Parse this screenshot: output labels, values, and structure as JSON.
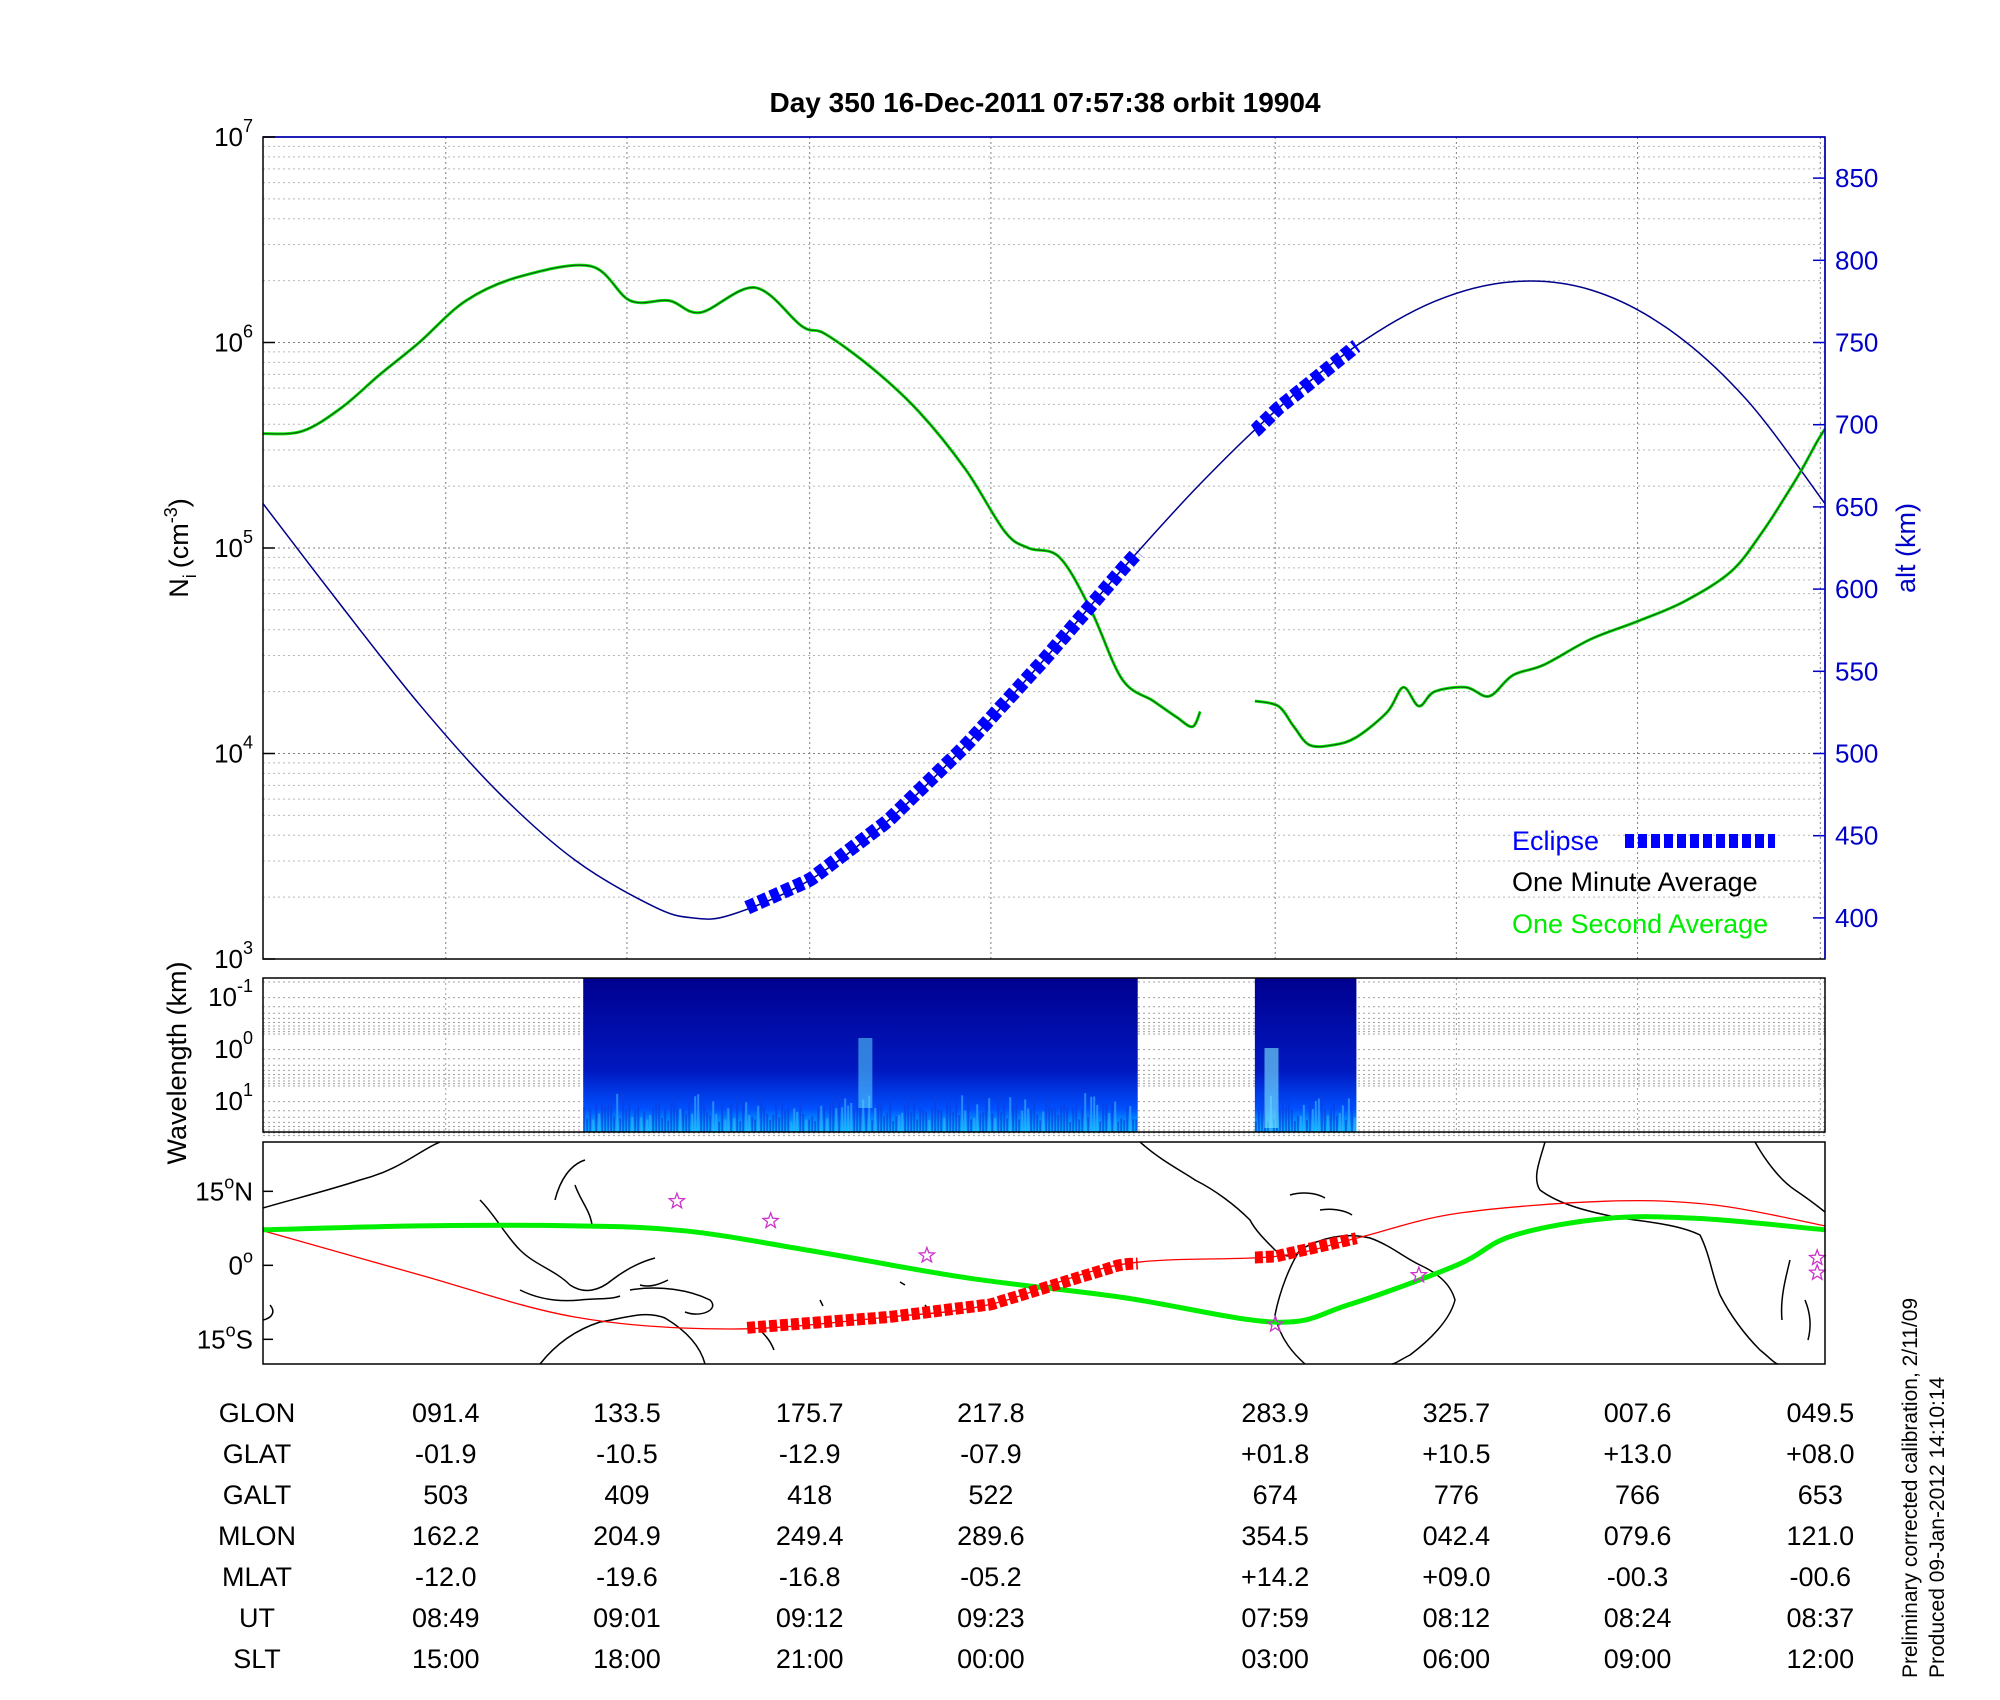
{
  "chart_data": [
    {
      "type": "line",
      "title": "Day 350  16-Dec-2011 07:57:38   orbit 19904",
      "ylabel_left": "N",
      "ylabel_left_sub": "i",
      "ylabel_left_unit": "(cm",
      "ylabel_left_unit_exp": "-3",
      "ylabel_left_unit_close": ")",
      "ylabel_right": "alt (km)",
      "y_left_scale": "log",
      "ylim_left": [
        1000,
        10000000
      ],
      "y_left_ticks": [
        {
          "base": "10",
          "exp": "3",
          "value": 1000
        },
        {
          "base": "10",
          "exp": "4",
          "value": 10000
        },
        {
          "base": "10",
          "exp": "5",
          "value": 100000
        },
        {
          "base": "10",
          "exp": "6",
          "value": 1000000
        },
        {
          "base": "10",
          "exp": "7",
          "value": 10000000
        }
      ],
      "ylim_right": [
        375,
        875
      ],
      "y_right_ticks": [
        "400",
        "450",
        "500",
        "550",
        "600",
        "650",
        "700",
        "750",
        "800",
        "850"
      ],
      "x_note": "x is fractional position along the orbit track (0 = left edge, 1 = right edge)",
      "grid": true,
      "legend": {
        "position": "bottom-right",
        "entries": [
          {
            "label": "Eclipse",
            "color": "#0000ff"
          },
          {
            "label": "One Minute Average",
            "color": "#000000"
          },
          {
            "label": "One Second Average",
            "color": "#00ee00"
          }
        ]
      },
      "series_density_seg1": [
        [
          0,
          360000
        ],
        [
          0.025,
          370000
        ],
        [
          0.05,
          480000
        ],
        [
          0.075,
          700000
        ],
        [
          0.1,
          1000000
        ],
        [
          0.13,
          1600000
        ],
        [
          0.165,
          2100000
        ],
        [
          0.21,
          2350000
        ],
        [
          0.235,
          1600000
        ],
        [
          0.26,
          1600000
        ],
        [
          0.28,
          1400000
        ],
        [
          0.315,
          1850000
        ],
        [
          0.345,
          1200000
        ],
        [
          0.36,
          1100000
        ],
        [
          0.39,
          750000
        ],
        [
          0.42,
          460000
        ],
        [
          0.45,
          240000
        ],
        [
          0.475,
          120000
        ],
        [
          0.49,
          100000
        ],
        [
          0.51,
          90000
        ],
        [
          0.53,
          50000
        ],
        [
          0.55,
          23000
        ],
        [
          0.57,
          18000
        ],
        [
          0.585,
          15000
        ],
        [
          0.595,
          13500
        ],
        [
          0.6,
          16000
        ]
      ],
      "series_density_seg2": [
        [
          0.635,
          18000
        ],
        [
          0.65,
          17000
        ],
        [
          0.66,
          13500
        ],
        [
          0.67,
          11000
        ],
        [
          0.685,
          11000
        ],
        [
          0.7,
          12000
        ],
        [
          0.72,
          16000
        ],
        [
          0.73,
          21000
        ],
        [
          0.74,
          17000
        ],
        [
          0.75,
          20000
        ],
        [
          0.77,
          21000
        ],
        [
          0.785,
          19000
        ],
        [
          0.8,
          24000
        ],
        [
          0.82,
          27000
        ],
        [
          0.85,
          36000
        ],
        [
          0.88,
          44000
        ],
        [
          0.91,
          55000
        ],
        [
          0.94,
          77000
        ],
        [
          0.96,
          120000
        ],
        [
          0.975,
          180000
        ],
        [
          0.985,
          240000
        ],
        [
          0.995,
          330000
        ],
        [
          1.0,
          380000
        ]
      ],
      "series_altitude_km": [
        [
          0,
          652
        ],
        [
          0.05,
          590
        ],
        [
          0.1,
          530
        ],
        [
          0.15,
          477
        ],
        [
          0.2,
          435
        ],
        [
          0.25,
          407
        ],
        [
          0.275,
          400
        ],
        [
          0.3,
          402
        ],
        [
          0.35,
          423
        ],
        [
          0.4,
          459
        ],
        [
          0.45,
          505
        ],
        [
          0.5,
          557
        ],
        [
          0.55,
          612
        ],
        [
          0.6,
          664
        ],
        [
          0.65,
          710
        ],
        [
          0.7,
          748
        ],
        [
          0.75,
          775
        ],
        [
          0.8,
          787
        ],
        [
          0.85,
          782
        ],
        [
          0.9,
          758
        ],
        [
          0.95,
          715
        ],
        [
          1.0,
          652
        ]
      ],
      "eclipse_x_ranges": [
        [
          0.31,
          0.56
        ],
        [
          0.635,
          0.7
        ]
      ]
    },
    {
      "type": "heatmap",
      "ylabel": "Wavelength (km)",
      "y_ticks": [
        {
          "base": "10",
          "exp": "-1"
        },
        {
          "base": "10",
          "exp": "0"
        },
        {
          "base": "10",
          "exp": "1"
        }
      ],
      "data_x_ranges": [
        [
          0.205,
          0.56
        ],
        [
          0.635,
          0.7
        ]
      ],
      "colormap": "jet (dark blue background with cyan highlights at long wavelengths)"
    },
    {
      "type": "map",
      "y_ticks": [
        {
          "deg": "15",
          "hemi": "N"
        },
        {
          "deg": "0",
          "hemi": ""
        },
        {
          "deg": "15",
          "hemi": "S"
        }
      ],
      "ylim_lat": [
        -20,
        25
      ],
      "track_geographic_color": "#ff0000",
      "track_magnetic_color": "#00ee00",
      "track_geographic": [
        [
          0,
          7
        ],
        [
          0.1,
          -1.9
        ],
        [
          0.2,
          -10.5
        ],
        [
          0.3,
          -12.9
        ],
        [
          0.4,
          -10.5
        ],
        [
          0.466,
          -7.9
        ],
        [
          0.55,
          0.2
        ],
        [
          0.648,
          1.8
        ],
        [
          0.7,
          5.5
        ],
        [
          0.764,
          10.5
        ],
        [
          0.86,
          13.0
        ],
        [
          0.93,
          12.2
        ],
        [
          1.0,
          8.0
        ]
      ],
      "track_magnetic": [
        [
          0,
          7.2
        ],
        [
          0.1,
          8
        ],
        [
          0.2,
          8
        ],
        [
          0.27,
          7
        ],
        [
          0.35,
          3
        ],
        [
          0.45,
          -2.5
        ],
        [
          0.55,
          -6.5
        ],
        [
          0.648,
          -11.5
        ],
        [
          0.695,
          -8
        ],
        [
          0.764,
          0
        ],
        [
          0.8,
          6
        ],
        [
          0.86,
          9.5
        ],
        [
          0.92,
          9.5
        ],
        [
          1.0,
          7.2
        ]
      ],
      "eclipse_geographic_x_ranges": [
        [
          0.31,
          0.56
        ],
        [
          0.635,
          0.7
        ]
      ],
      "stars": [
        [
          0.265,
          13
        ],
        [
          0.325,
          9
        ],
        [
          0.425,
          2
        ],
        [
          0.648,
          -12
        ],
        [
          0.74,
          -2
        ],
        [
          0.995,
          1.5
        ],
        [
          0.995,
          -1.5
        ]
      ],
      "star_color": "#cc33cc"
    }
  ],
  "table": {
    "columns": [
      {
        "x": 0.117,
        "values": [
          "091.4",
          "-01.9",
          "503",
          "162.2",
          "-12.0",
          "08:49",
          "15:00"
        ]
      },
      {
        "x": 0.233,
        "values": [
          "133.5",
          "-10.5",
          "409",
          "204.9",
          "-19.6",
          "09:01",
          "18:00"
        ]
      },
      {
        "x": 0.35,
        "values": [
          "175.7",
          "-12.9",
          "418",
          "249.4",
          "-16.8",
          "09:12",
          "21:00"
        ]
      },
      {
        "x": 0.466,
        "values": [
          "217.8",
          "-07.9",
          "522",
          "289.6",
          "-05.2",
          "09:23",
          "00:00"
        ]
      },
      {
        "x": 0.648,
        "values": [
          "283.9",
          "+01.8",
          "674",
          "354.5",
          "+14.2",
          "07:59",
          "03:00"
        ]
      },
      {
        "x": 0.764,
        "values": [
          "325.7",
          "+10.5",
          "776",
          "042.4",
          "+09.0",
          "08:12",
          "06:00"
        ]
      },
      {
        "x": 0.88,
        "values": [
          "007.6",
          "+13.0",
          "766",
          "079.6",
          "-00.3",
          "08:24",
          "09:00"
        ]
      },
      {
        "x": 0.997,
        "values": [
          "049.5",
          "+08.0",
          "653",
          "121.0",
          "-00.6",
          "08:37",
          "12:00"
        ]
      }
    ],
    "row_labels": [
      "GLON",
      "GLAT",
      "GALT",
      "MLON",
      "MLAT",
      "UT",
      "SLT"
    ]
  },
  "footnote": {
    "line1": "Preliminary corrected calibration, 2/11/09",
    "line2": "Produced 09-Jan-2012 14:10:14"
  },
  "colors": {
    "altitude": "#00008b",
    "density_minute": "#000000",
    "density_second": "#00ee00",
    "eclipse": "#0000ff",
    "axis_right": "#0000c8"
  }
}
